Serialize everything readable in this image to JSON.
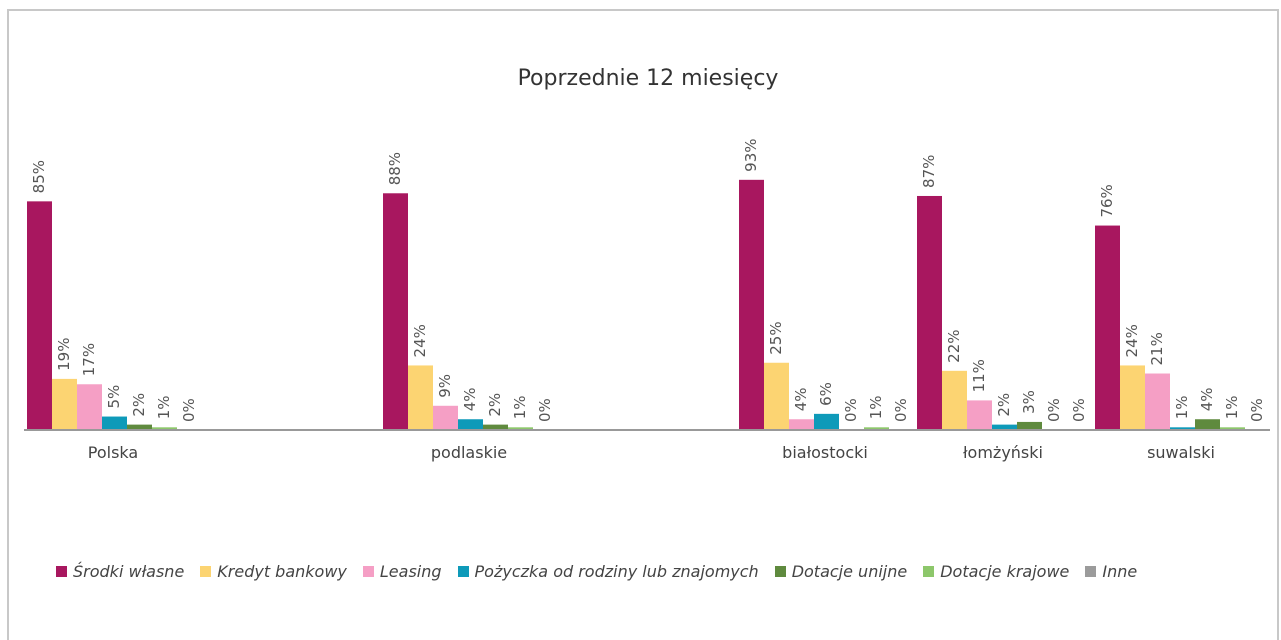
{
  "chart_data": {
    "type": "bar",
    "title": "Poprzednie 12 miesięcy",
    "categories": [
      "Polska",
      null,
      "podlaskie",
      null,
      "białostocki",
      "łomżyński",
      "suwalski"
    ],
    "ylim": [
      0,
      100
    ],
    "series": [
      {
        "name": "Środki własne",
        "color": "#a8175f",
        "values": [
          85,
          null,
          88,
          null,
          93,
          87,
          76
        ],
        "value_labels": [
          "85%",
          null,
          "88%",
          null,
          "93%",
          "87%",
          "76%"
        ]
      },
      {
        "name": "Kredyt bankowy",
        "color": "#fcd472",
        "values": [
          19,
          null,
          24,
          null,
          25,
          22,
          24
        ],
        "value_labels": [
          "19%",
          null,
          "24%",
          null,
          "25%",
          "22%",
          "24%"
        ]
      },
      {
        "name": "Leasing",
        "color": "#f59fc5",
        "values": [
          17,
          null,
          9,
          null,
          4,
          11,
          21
        ],
        "value_labels": [
          "17%",
          null,
          "9%",
          null,
          "4%",
          "11%",
          "21%"
        ]
      },
      {
        "name": "Pożyczka od rodziny lub znajomych",
        "color": "#0e9ab9",
        "values": [
          5,
          null,
          4,
          null,
          6,
          2,
          1
        ],
        "value_labels": [
          "5%",
          null,
          "4%",
          null,
          "6%",
          "2%",
          "1%"
        ]
      },
      {
        "name": "Dotacje unijne",
        "color": "#5f8a3e",
        "values": [
          2,
          null,
          2,
          null,
          0,
          3,
          4
        ],
        "value_labels": [
          "2%",
          null,
          "2%",
          null,
          "0%",
          "3%",
          "4%"
        ]
      },
      {
        "name": "Dotacje krajowe",
        "color": "#8dc76b",
        "values": [
          1,
          null,
          1,
          null,
          1,
          0,
          1
        ],
        "value_labels": [
          "1%",
          null,
          "1%",
          null,
          "1%",
          "0%",
          "1%"
        ]
      },
      {
        "name": "Inne",
        "color": "#9b9b9b",
        "values": [
          0,
          null,
          0,
          null,
          0,
          0,
          0
        ],
        "value_labels": [
          "0%",
          null,
          "0%",
          null,
          "0%",
          "0%",
          "0%"
        ]
      }
    ]
  }
}
